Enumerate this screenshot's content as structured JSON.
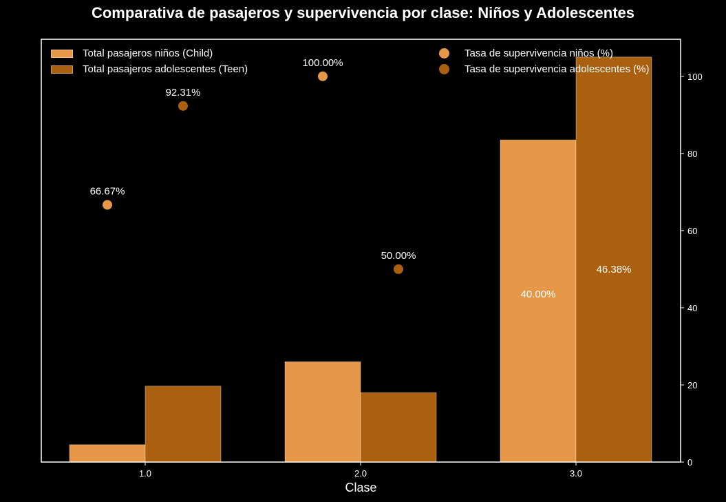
{
  "chart_data": {
    "type": "bar",
    "title": "Comparativa de pasajeros y supervivencia por clase: Niños y Adolescentes",
    "xlabel": "Clase",
    "ylabel": "",
    "categories": [
      "1.0",
      "2.0",
      "3.0"
    ],
    "ylim": [
      0,
      105
    ],
    "yticks": [
      "0",
      "20",
      "40",
      "60",
      "80",
      "100"
    ],
    "grid": false,
    "legend_position": "top",
    "series": [
      {
        "name": "Total pasajeros niños (Child)",
        "kind": "bar",
        "values": [
          4.5,
          26,
          83.5
        ],
        "color": "#e69848"
      },
      {
        "name": "Total pasajeros adolescentes (Teen)",
        "kind": "bar",
        "values": [
          19.7,
          18,
          105
        ],
        "color": "#ab6010"
      },
      {
        "name": "Tasa de supervivencia niños (%)",
        "kind": "scatter",
        "values": [
          66.67,
          100.0,
          40.0
        ],
        "labels": [
          "66.67%",
          "100.00%",
          "40.00%"
        ],
        "color": "#e69848"
      },
      {
        "name": "Tasa de supervivencia adolescentes (%)",
        "kind": "scatter",
        "values": [
          92.31,
          50.0,
          46.38
        ],
        "labels": [
          "92.31%",
          "50.00%",
          "46.38%"
        ],
        "color": "#ab6010"
      }
    ]
  }
}
